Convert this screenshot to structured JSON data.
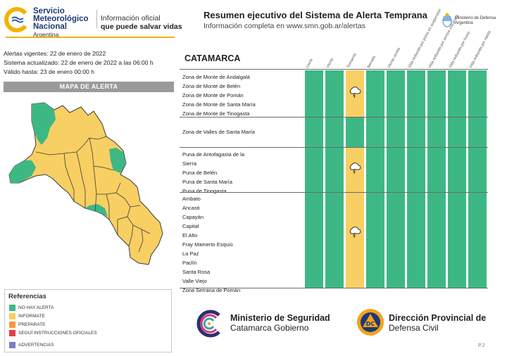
{
  "header": {
    "org_line1": "Servicio",
    "org_line2": "Meteorológico",
    "org_line3": "Nacional",
    "org_country": "Argentina",
    "tagline1": "Información oficial",
    "tagline2": "que puede salvar vidas",
    "title": "Resumen ejecutivo del Sistema de Alerta Temprana",
    "subtitle": "Información completa en www.smn.gob.ar/alertas",
    "ministry_line1": "Ministerio de Defensa",
    "ministry_line2": "Argentina"
  },
  "info": {
    "vigentes": "Alertas vigentes: 22 de enero de 2022",
    "actualizado": "Sistema actualizado: 22 de enero de 2022 a las 06:00 h",
    "valido": "Válido hasta: 23 de enero 00:00 h"
  },
  "map": {
    "title": "MAPA DE ALERTA"
  },
  "references": {
    "title": "Referencias",
    "items": [
      {
        "label": "NO HAY ALERTA",
        "color": "#3db884"
      },
      {
        "label": "INFORMATE",
        "color": "#f8cf63"
      },
      {
        "label": "PREPARATE",
        "color": "#f29a3a"
      },
      {
        "label": "SEGUÍ INSTRUCCIONES OFICIALES",
        "color": "#e04040"
      },
      {
        "label": "ADVERTENCIAS",
        "color": "#7b7bc4"
      }
    ]
  },
  "table": {
    "province": "CATAMARCA",
    "columns": [
      "Lluvia",
      "Viento",
      "Tormenta",
      "Nevada",
      "Viento zonda",
      "Vida reducida por polvo en suspensión",
      "Vida reducida por ceniza volcánica",
      "Vida reducida por humo",
      "Vida reducida por niebla"
    ],
    "groups": [
      {
        "zones": [
          "Zona de Monte de Andalgalá",
          "Zona de Monte de Belén",
          "Zona de Monte de Pomán",
          "Zona de Monte de Santa María",
          "Zona de Monte de Tinogasta"
        ],
        "alert_col": 2,
        "icon": "storm-icon"
      },
      {
        "zones": [
          "Zona de Valles de Santa María"
        ],
        "alert_col": -1,
        "icon": ""
      },
      {
        "zones": [
          "Puna de Antofagasta de la",
          "Sierra",
          "Puna de Belén",
          "Puna de Santa María",
          "Puna de Tinogasta"
        ],
        "alert_col": 2,
        "icon": "storm-icon"
      },
      {
        "zones": [
          "Ambato",
          "Ancasti",
          "Capayán",
          "Capital",
          "El Alto",
          "Fray Mamerto Esquiú",
          "La Paz",
          "Paclín",
          "Santa Rosa",
          "Valle Viejo",
          "Zona Serrana de Pomán"
        ],
        "alert_col": 2,
        "icon": "storm-icon"
      }
    ]
  },
  "footer": {
    "minseg_line1": "Ministerio de Seguridad",
    "minseg_line2": "Catamarca Gobierno",
    "dc_badge": "DC",
    "dc_line1": "Dirección Provincial de",
    "dc_line2": "Defensa Civil",
    "page": "P.2"
  },
  "colors": {
    "green": "#3db884",
    "yellow": "#f8cf63",
    "accent": "#f0b400"
  }
}
